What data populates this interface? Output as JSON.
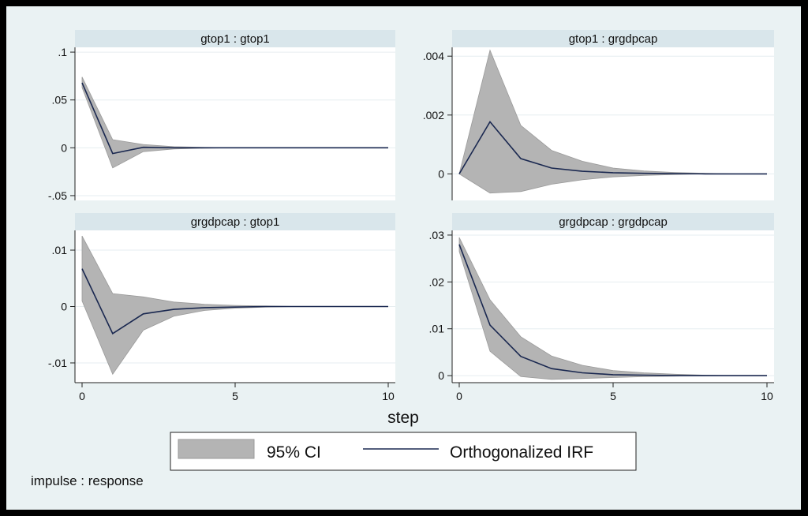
{
  "figure": {
    "xlabel": "step",
    "note": "impulse : response",
    "legend": [
      {
        "label": "95% CI",
        "kind": "area",
        "color": "#b4b4b4"
      },
      {
        "label": "Orthogonalized IRF",
        "kind": "line",
        "color": "#1a2850"
      }
    ],
    "colors": {
      "background": "#eaf2f3",
      "plot_bg": "#ffffff",
      "strip_bg": "#d9e6eb",
      "band": "#b4b4b4",
      "band_edge": "#9a9a9a",
      "line": "#1a2850",
      "grid": "#e6eef0"
    }
  },
  "chart_data": [
    {
      "type": "area",
      "title": "gtop1 : gtop1",
      "xlim": [
        0,
        10
      ],
      "ylim": [
        -0.055,
        0.105
      ],
      "xticks": [
        0,
        5,
        10
      ],
      "xtick_labels": [
        "0",
        "5",
        "10"
      ],
      "yticks": [
        0.1,
        0.05,
        0,
        -0.05
      ],
      "ytick_labels": [
        ".1",
        ".05",
        "0",
        "-.05"
      ],
      "x": [
        0,
        1,
        2,
        3,
        4,
        5,
        6,
        7,
        8,
        9,
        10
      ],
      "series": [
        {
          "name": "95% CI",
          "lower": [
            0.063,
            -0.021,
            -0.004,
            -0.0012,
            -0.0004,
            -0.0001,
            0,
            0,
            0,
            0,
            0
          ],
          "upper": [
            0.074,
            0.0085,
            0.0035,
            0.0012,
            0.0004,
            0.0001,
            0,
            0,
            0,
            0,
            0
          ]
        },
        {
          "name": "Orthogonalized IRF",
          "values": [
            0.068,
            -0.006,
            0.0005,
            0,
            0,
            0,
            0,
            0,
            0,
            0,
            0
          ]
        }
      ]
    },
    {
      "type": "area",
      "title": "gtop1 : grgdpcap",
      "xlim": [
        0,
        10
      ],
      "ylim": [
        -0.0009,
        0.0043
      ],
      "xticks": [
        0,
        5,
        10
      ],
      "xtick_labels": [
        "0",
        "5",
        "10"
      ],
      "yticks": [
        0.004,
        0.002,
        0
      ],
      "ytick_labels": [
        ".004",
        ".002",
        "0"
      ],
      "x": [
        0,
        1,
        2,
        3,
        4,
        5,
        6,
        7,
        8,
        9,
        10
      ],
      "series": [
        {
          "name": "95% CI",
          "lower": [
            0,
            -0.00065,
            -0.0006,
            -0.00035,
            -0.0002,
            -0.0001,
            -5e-05,
            -2e-05,
            0,
            0,
            0
          ],
          "upper": [
            0,
            0.0042,
            0.00165,
            0.0008,
            0.00043,
            0.0002,
            0.0001,
            5e-05,
            2e-05,
            0,
            0
          ]
        },
        {
          "name": "Orthogonalized IRF",
          "values": [
            0,
            0.00177,
            0.00052,
            0.0002,
            9e-05,
            4e-05,
            2e-05,
            1e-05,
            0,
            0,
            0
          ]
        }
      ]
    },
    {
      "type": "area",
      "title": "grgdpcap : gtop1",
      "xlim": [
        0,
        10
      ],
      "ylim": [
        -0.0135,
        0.0135
      ],
      "xticks": [
        0,
        5,
        10
      ],
      "xtick_labels": [
        "0",
        "5",
        "10"
      ],
      "yticks": [
        0.01,
        0,
        -0.01
      ],
      "ytick_labels": [
        ".01",
        "0",
        "-.01"
      ],
      "x": [
        0,
        1,
        2,
        3,
        4,
        5,
        6,
        7,
        8,
        9,
        10
      ],
      "series": [
        {
          "name": "95% CI",
          "lower": [
            0.001,
            -0.012,
            -0.0042,
            -0.0017,
            -0.0007,
            -0.0003,
            -0.0001,
            0,
            0,
            0,
            0
          ],
          "upper": [
            0.0125,
            0.0023,
            0.0017,
            0.0008,
            0.0004,
            0.0002,
            0.0001,
            0,
            0,
            0,
            0
          ]
        },
        {
          "name": "Orthogonalized IRF",
          "values": [
            0.0067,
            -0.0048,
            -0.0013,
            -0.0005,
            -0.0002,
            -0.0001,
            0,
            0,
            0,
            0,
            0
          ]
        }
      ]
    },
    {
      "type": "area",
      "title": "grgdpcap : grgdpcap",
      "xlim": [
        0,
        10
      ],
      "ylim": [
        -0.0015,
        0.031
      ],
      "xticks": [
        0,
        5,
        10
      ],
      "xtick_labels": [
        "0",
        "5",
        "10"
      ],
      "yticks": [
        0.03,
        0.02,
        0.01,
        0
      ],
      "ytick_labels": [
        ".03",
        ".02",
        ".01",
        "0"
      ],
      "x": [
        0,
        1,
        2,
        3,
        4,
        5,
        6,
        7,
        8,
        9,
        10
      ],
      "series": [
        {
          "name": "95% CI",
          "lower": [
            0.0265,
            0.0052,
            -0.0002,
            -0.0008,
            -0.0006,
            -0.0004,
            -0.0002,
            -0.0001,
            0,
            0,
            0
          ],
          "upper": [
            0.0295,
            0.0162,
            0.0083,
            0.0042,
            0.0022,
            0.0011,
            0.0006,
            0.0003,
            0.0001,
            0,
            0
          ]
        },
        {
          "name": "Orthogonalized IRF",
          "values": [
            0.028,
            0.0108,
            0.0041,
            0.0015,
            0.0006,
            0.0002,
            0.0001,
            0,
            0,
            0,
            0
          ]
        }
      ]
    }
  ]
}
